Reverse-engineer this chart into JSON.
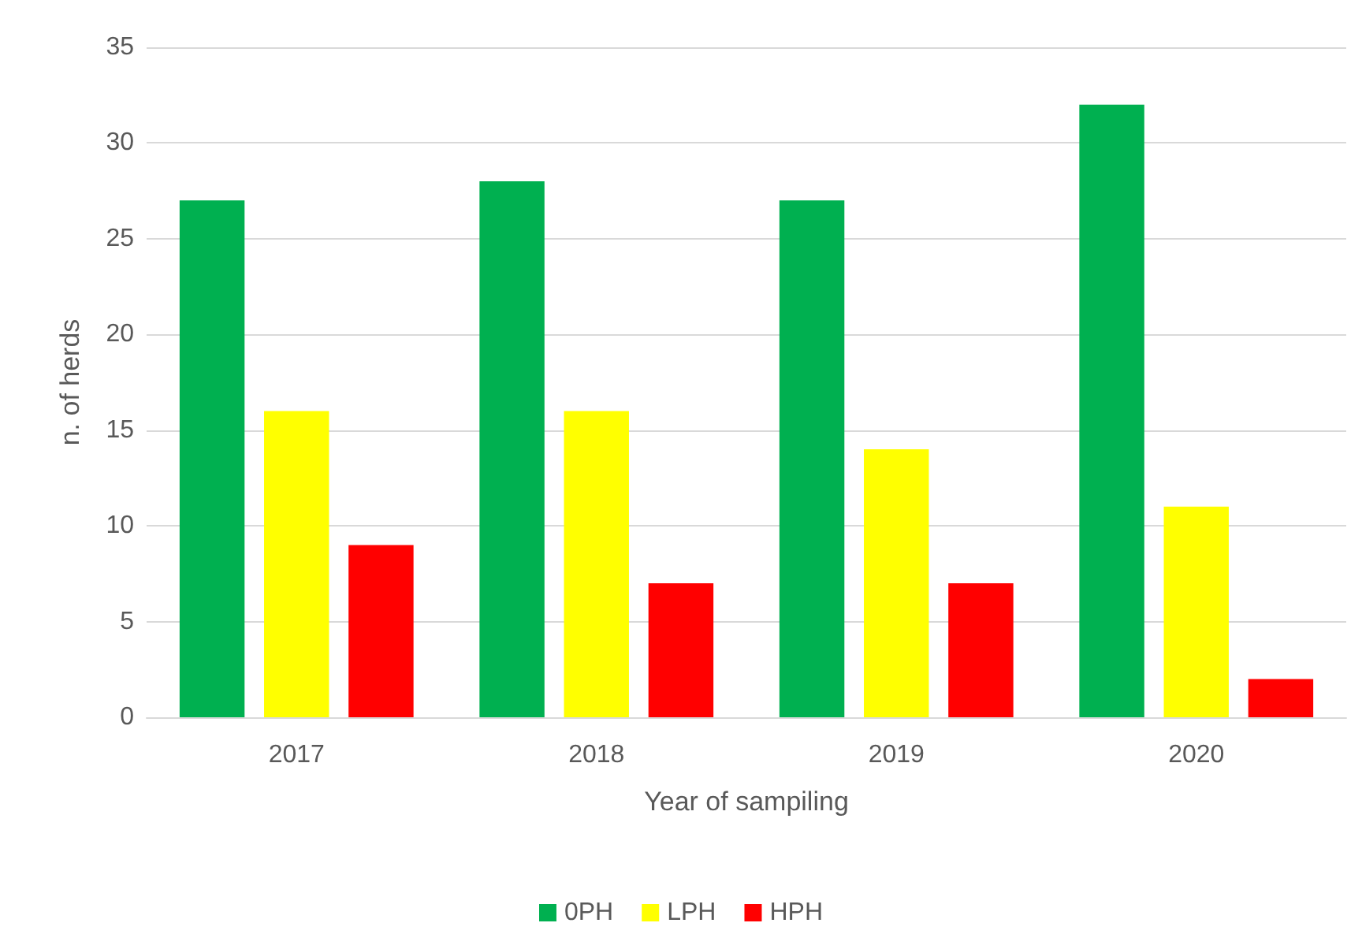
{
  "chart_data": {
    "type": "bar",
    "xlabel": "Year of sampiling",
    "ylabel": "n. of herds",
    "categories": [
      "2017",
      "2018",
      "2019",
      "2020"
    ],
    "series": [
      {
        "name": "0PH",
        "color": "#00b050",
        "values": [
          27,
          28,
          27,
          32
        ]
      },
      {
        "name": "LPH",
        "color": "#ffff00",
        "values": [
          16,
          16,
          14,
          11
        ]
      },
      {
        "name": "HPH",
        "color": "#ff0000",
        "values": [
          9,
          7,
          7,
          2
        ]
      }
    ],
    "ylim": [
      0,
      35
    ],
    "yticks": [
      0,
      5,
      10,
      15,
      20,
      25,
      30,
      35
    ],
    "grid": "y",
    "legend": "bottom"
  }
}
